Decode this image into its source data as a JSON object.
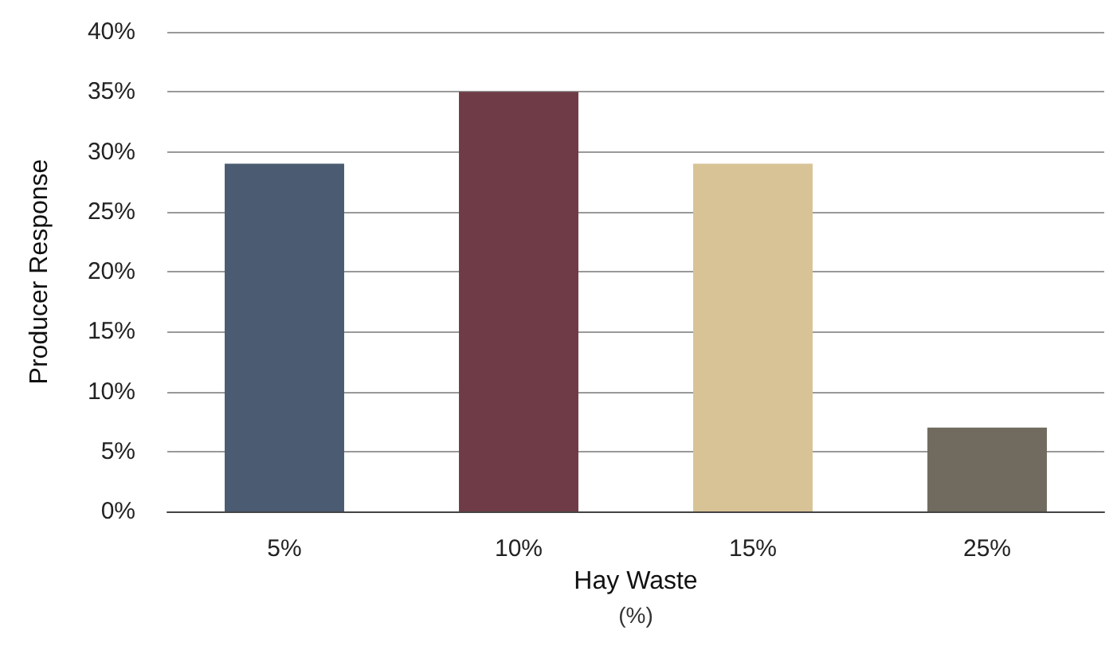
{
  "chart_data": {
    "type": "bar",
    "xlabel": "Hay Waste\n(%)",
    "ylabel": "Producer Response",
    "categories": [
      "5%",
      "10%",
      "15%",
      "25%"
    ],
    "values": [
      29,
      35,
      29,
      7
    ],
    "colors": [
      "#4a5b72",
      "#6f3b46",
      "#d8c396",
      "#706b5e"
    ],
    "ylim": [
      0,
      40
    ],
    "yticks": [
      {
        "value": 0,
        "label": "0%"
      },
      {
        "value": 5,
        "label": "5%"
      },
      {
        "value": 10,
        "label": "10%"
      },
      {
        "value": 15,
        "label": "15%"
      },
      {
        "value": 20,
        "label": "20%"
      },
      {
        "value": 25,
        "label": "25%"
      },
      {
        "value": 30,
        "label": "30%"
      },
      {
        "value": 35,
        "label": "35%"
      },
      {
        "value": 40,
        "label": "40%"
      }
    ],
    "grid": "y"
  }
}
